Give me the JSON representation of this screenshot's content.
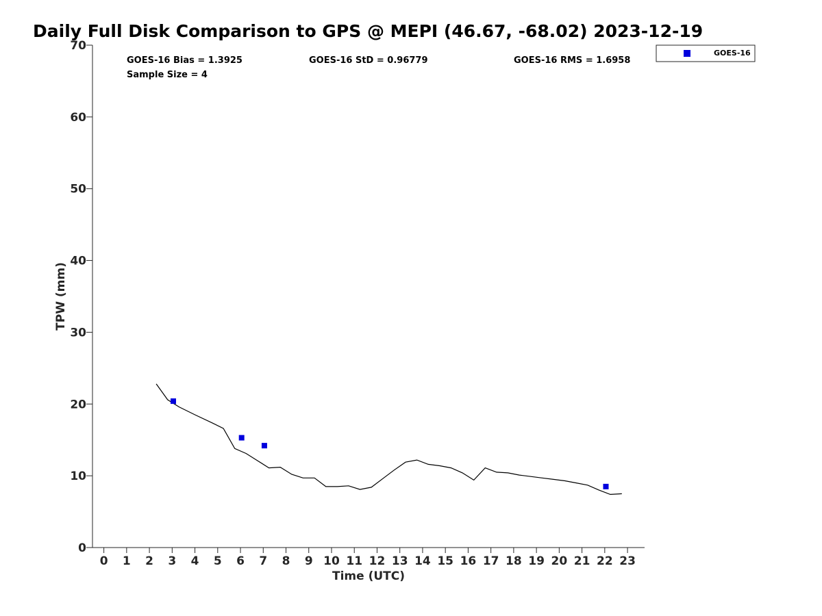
{
  "chart_data": {
    "type": "scatter",
    "title": "Daily Full Disk Comparison to GPS @ MEPI (46.67, -68.02) 2023-12-19",
    "xlabel": "Time (UTC)",
    "ylabel": "TPW (mm)",
    "xlim": [
      -0.5,
      23.75
    ],
    "ylim": [
      0,
      70
    ],
    "xticks": [
      0,
      1,
      2,
      3,
      4,
      5,
      6,
      7,
      8,
      9,
      10,
      11,
      12,
      13,
      14,
      15,
      16,
      17,
      18,
      19,
      20,
      21,
      22,
      23
    ],
    "yticks": [
      0,
      10,
      20,
      30,
      40,
      50,
      60,
      70
    ],
    "grid": false,
    "legend": {
      "placement": "top-right outside",
      "entries": [
        "GOES-16"
      ]
    },
    "stats": {
      "bias": "GOES-16 Bias = 1.3925",
      "std": "GOES-16 StD = 0.96779",
      "rms": "GOES-16 RMS = 1.6958",
      "sample": "Sample Size = 4"
    },
    "series": [
      {
        "type": "line",
        "color": "#000000",
        "x": [
          2.3,
          2.8,
          3.3,
          4.0,
          4.8,
          5.25,
          5.75,
          6.25,
          6.75,
          7.25,
          7.75,
          8.25,
          8.75,
          9.25,
          9.75,
          10.25,
          10.75,
          11.25,
          11.75,
          12.25,
          12.75,
          13.25,
          13.75,
          14.25,
          14.75,
          15.25,
          15.75,
          16.25,
          16.75,
          17.25,
          17.75,
          18.25,
          18.75,
          19.25,
          19.75,
          20.25,
          20.75,
          21.25,
          21.75,
          22.25,
          22.75
        ],
        "values": [
          22.8,
          20.6,
          19.6,
          18.5,
          17.3,
          16.6,
          13.8,
          13.1,
          12.1,
          11.1,
          11.2,
          10.2,
          9.7,
          9.7,
          8.5,
          8.5,
          8.6,
          8.1,
          8.4,
          9.6,
          10.8,
          11.9,
          12.2,
          11.6,
          11.4,
          11.1,
          10.4,
          9.4,
          11.1,
          10.5,
          10.4,
          10.1,
          9.9,
          9.7,
          9.5,
          9.3,
          9.0,
          8.7,
          8.0,
          7.4,
          7.5
        ]
      },
      {
        "name": "GOES-16",
        "type": "scatter",
        "color": "#0000dd",
        "x": [
          3.05,
          6.05,
          7.05,
          22.05
        ],
        "values": [
          20.4,
          15.3,
          14.2,
          8.5
        ]
      }
    ]
  }
}
